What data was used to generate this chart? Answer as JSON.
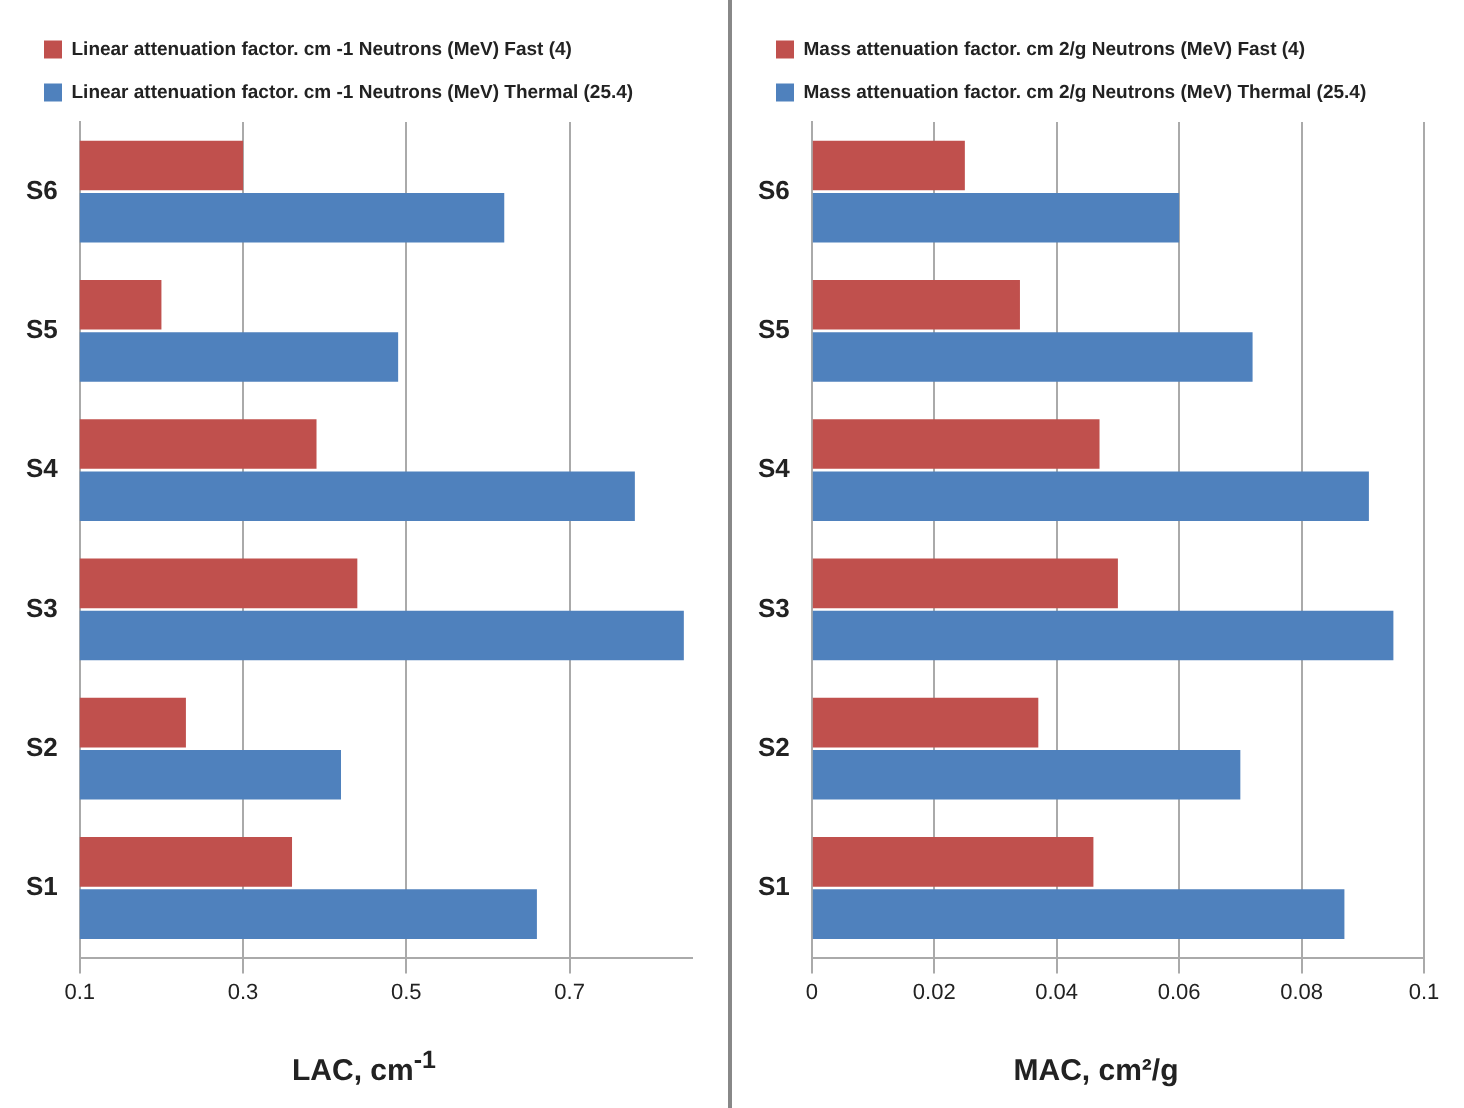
{
  "chart_data": [
    {
      "type": "bar",
      "orientation": "horizontal",
      "categories": [
        "S6",
        "S5",
        "S4",
        "S3",
        "S2",
        "S1"
      ],
      "xlabel": "LAC, cm$^{-1}$",
      "xlim": [
        0.1,
        0.85
      ],
      "xticks": [
        0.1,
        0.3,
        0.5,
        0.7
      ],
      "grid": "x",
      "legend": "top",
      "series": [
        {
          "name": "Linear attenuation factor. cm -1 Neutrons (MeV) Fast (4)",
          "color": "#c0504d",
          "values": [
            0.3,
            0.2,
            0.39,
            0.44,
            0.23,
            0.36
          ]
        },
        {
          "name": "Linear attenuation factor. cm -1 Neutrons (MeV) Thermal (25.4)",
          "color": "#4f81bd",
          "values": [
            0.62,
            0.49,
            0.78,
            0.84,
            0.42,
            0.66
          ]
        }
      ]
    },
    {
      "type": "bar",
      "orientation": "horizontal",
      "categories": [
        "S6",
        "S5",
        "S4",
        "S3",
        "S2",
        "S1"
      ],
      "xlabel": "MAC, cm²/g",
      "xlim": [
        0,
        0.1
      ],
      "xticks": [
        0,
        0.02,
        0.04,
        0.06,
        0.08,
        0.1
      ],
      "grid": "x",
      "legend": "top",
      "series": [
        {
          "name": "Mass attenuation factor. cm 2/g Neutrons (MeV) Fast (4)",
          "color": "#c0504d",
          "values": [
            0.025,
            0.034,
            0.047,
            0.05,
            0.037,
            0.046
          ]
        },
        {
          "name": "Mass attenuation factor. cm 2/g Neutrons (MeV) Thermal (25.4)",
          "color": "#4f81bd",
          "values": [
            0.06,
            0.072,
            0.091,
            0.095,
            0.07,
            0.087
          ]
        }
      ]
    }
  ]
}
